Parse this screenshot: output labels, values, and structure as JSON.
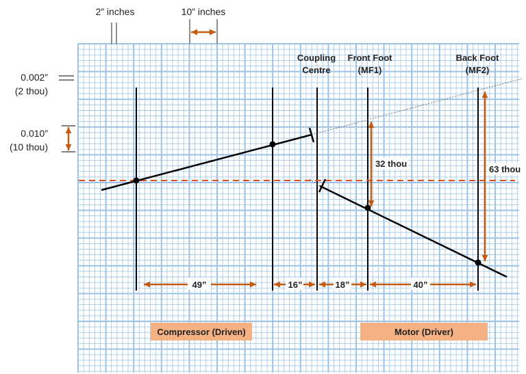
{
  "scale_labels": {
    "two_inches": "2” inches",
    "ten_inches": "10” inches"
  },
  "vertical_scale": {
    "small_value": "0.002”",
    "small_thou": "(2 thou)",
    "large_value": "0.010”",
    "large_thou": "(10 thou)"
  },
  "positions": {
    "coupling": [
      "Coupling",
      "Centre"
    ],
    "front_foot": [
      "Front Foot",
      "(MF1)"
    ],
    "back_foot": [
      "Back Foot",
      "(MF2)"
    ]
  },
  "offsets": {
    "front_foot": "32 thou",
    "back_foot": "63 thou"
  },
  "distances": [
    "49”",
    "16”",
    "18”",
    "40”"
  ],
  "machines": {
    "compressor": "Compressor (Driven)",
    "motor": "Motor (Driver)"
  },
  "colors": {
    "grid": "#9cc3e6",
    "accent": "#c55a11",
    "box": "#f4b183",
    "line": "#000000"
  }
}
